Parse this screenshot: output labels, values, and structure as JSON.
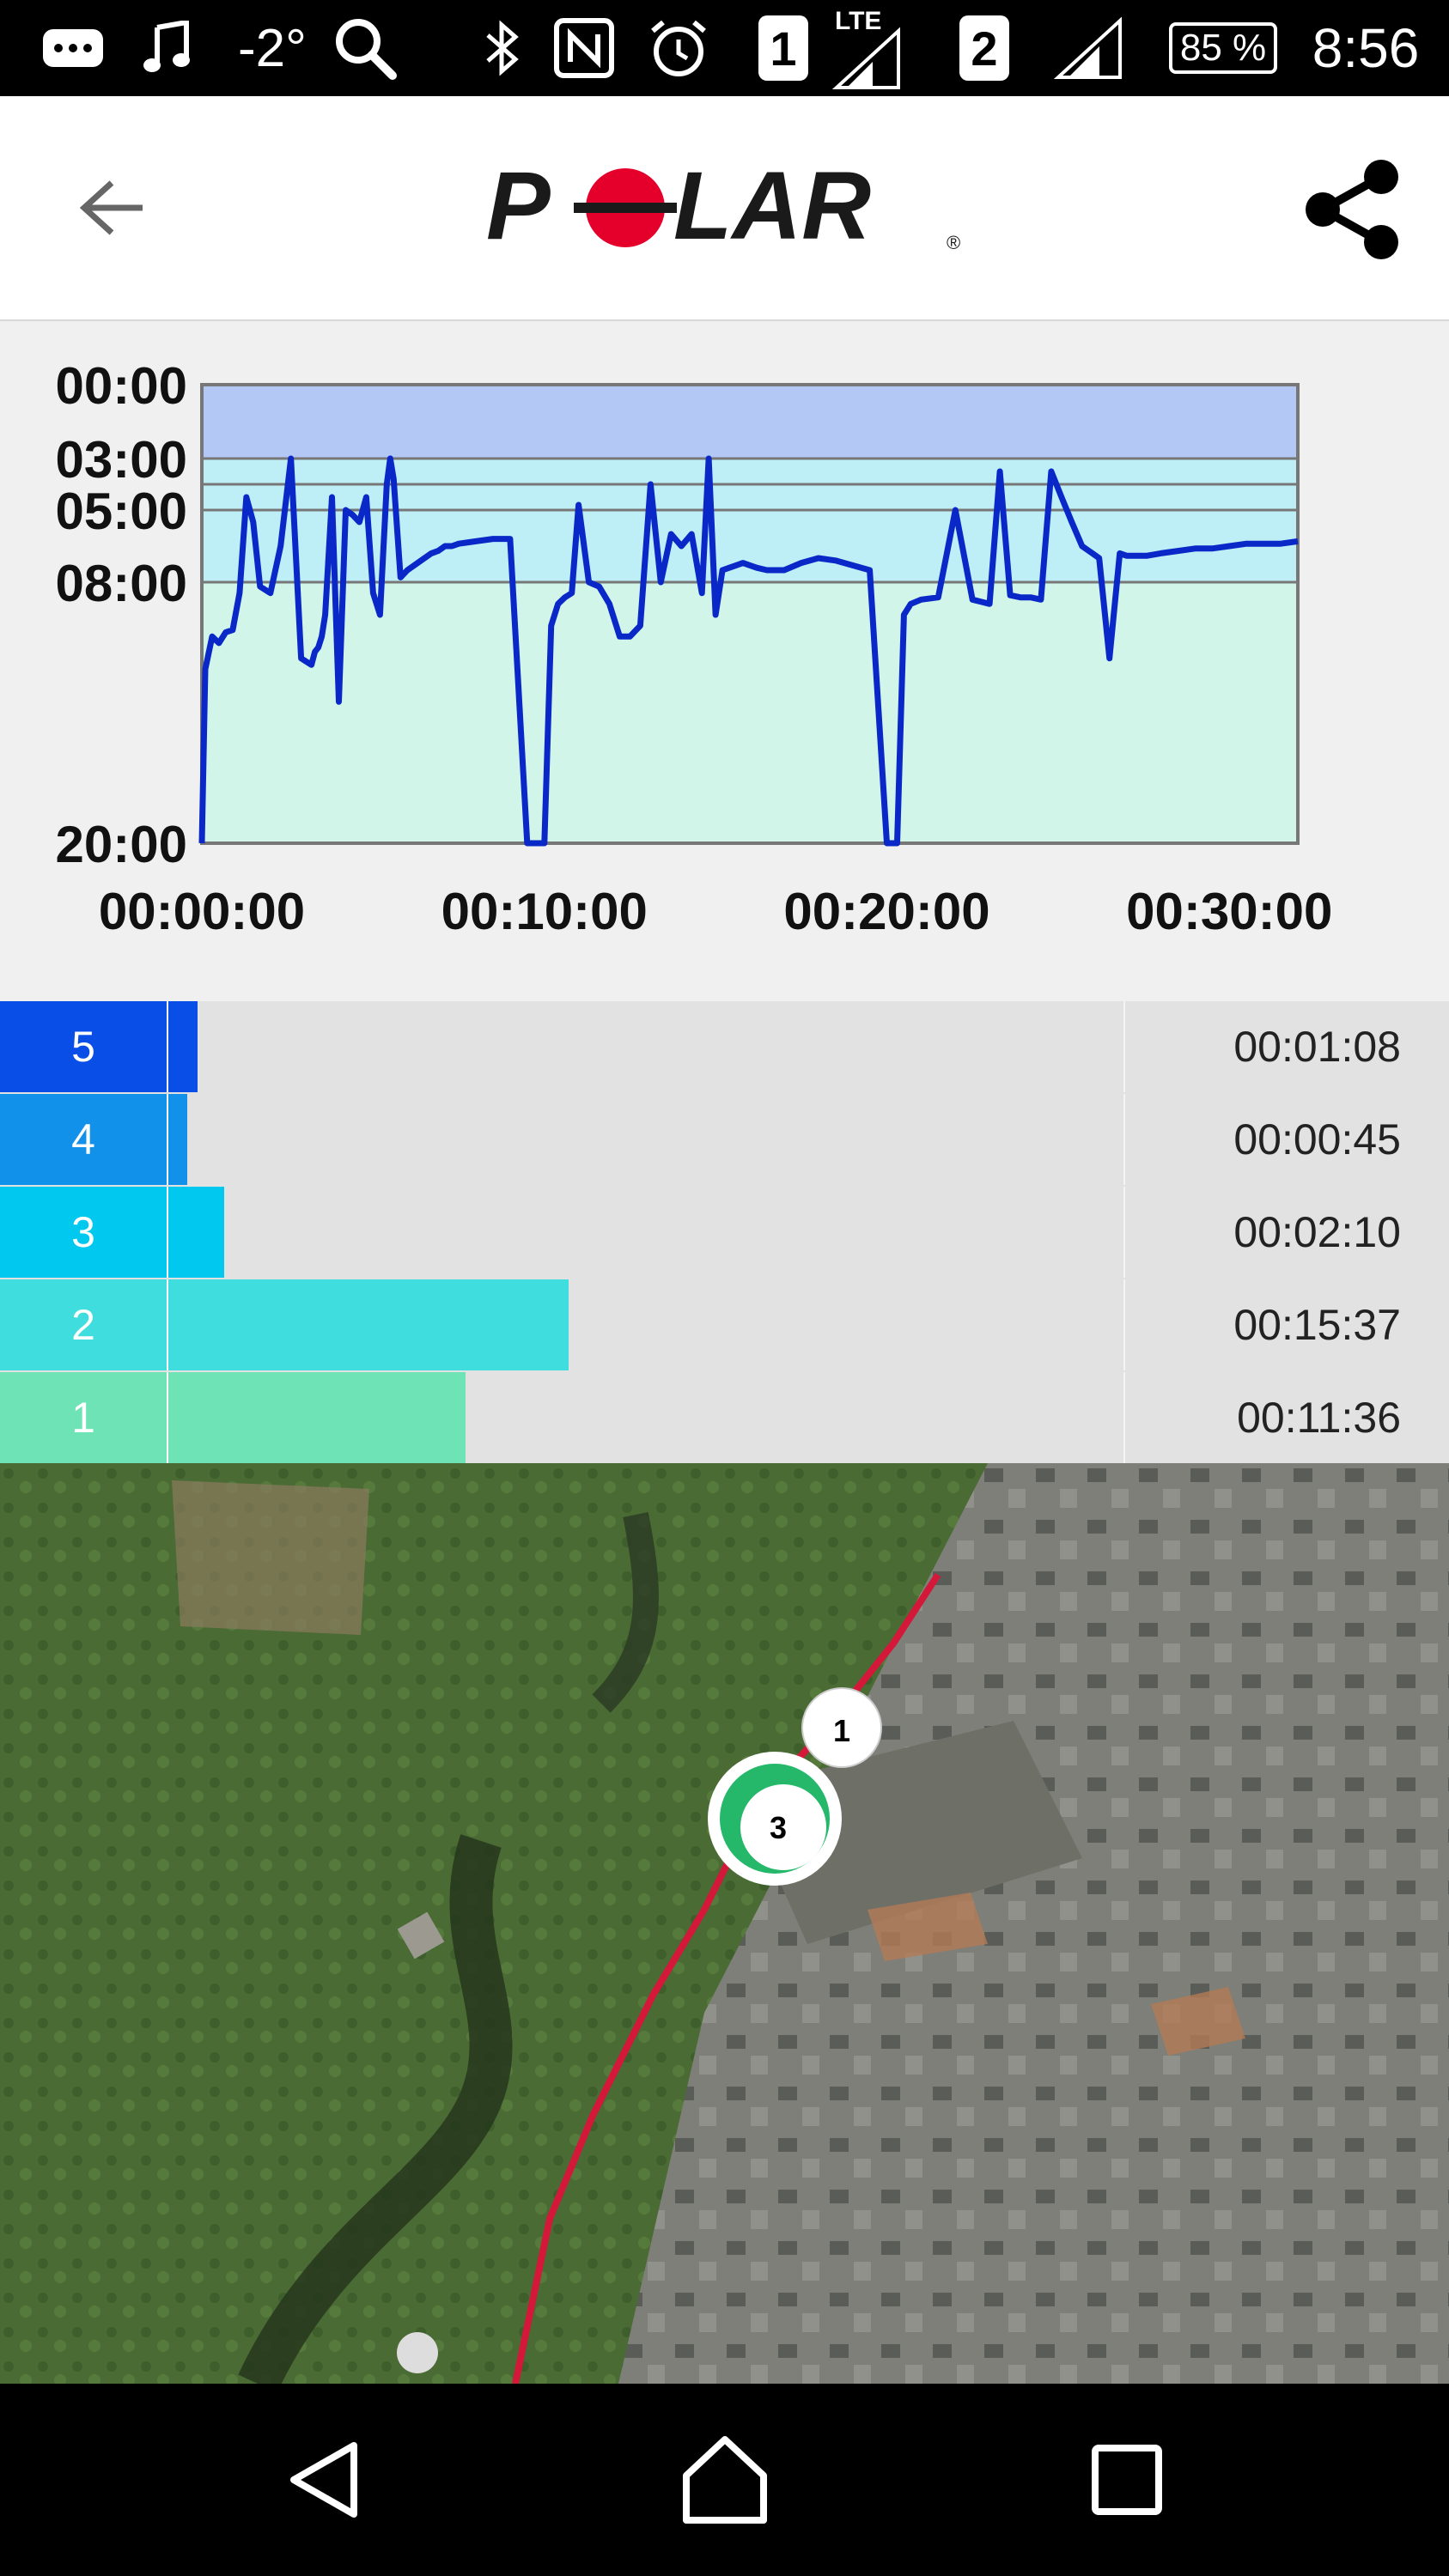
{
  "status_bar": {
    "music_icon": "music-note-icon",
    "temperature": "-2°",
    "sim1": "1",
    "network": "LTE",
    "sim2": "2",
    "battery": "85 %",
    "time": "8:56"
  },
  "app_bar": {
    "logo_text": "POLAR",
    "registered_mark": "®"
  },
  "chart_data": {
    "type": "line",
    "title": "",
    "xlabel": "",
    "ylabel": "",
    "x_ticks": [
      "00:00:00",
      "00:10:00",
      "00:20:00",
      "00:30:00"
    ],
    "y_ticks": [
      "00:00",
      "03:00",
      "05:00",
      "08:00",
      "20:00"
    ],
    "x_range_min": [
      0,
      32
    ],
    "y_range_pace_min_per_km": [
      0,
      20
    ],
    "y_scale": "reciprocal",
    "bands_colors": [
      "#b3c8f5",
      "#bfeff6",
      "#d2f5ea"
    ],
    "line_color": "#0a28c8",
    "series": [
      {
        "x_min": [
          0.0,
          0.1,
          0.3,
          0.5,
          0.7,
          0.9,
          1.1,
          1.3,
          1.5,
          1.7,
          2.0,
          2.3,
          2.6,
          2.9,
          3.2,
          3.3,
          3.4,
          3.5,
          3.6,
          3.8,
          4.0,
          4.2,
          4.4,
          4.6,
          4.8,
          5.0,
          5.2,
          5.4,
          5.5,
          5.6,
          5.8,
          6.0,
          6.3,
          6.5,
          6.7,
          6.9,
          7.1,
          7.3,
          7.5,
          8.0,
          8.5,
          9.0,
          9.5,
          10.0,
          10.2,
          10.4,
          10.6,
          10.8,
          11.0,
          11.3,
          11.6,
          11.9,
          12.2,
          12.5,
          12.8,
          13.1,
          13.4,
          13.7,
          14.0,
          14.3,
          14.6,
          14.8,
          15.0,
          15.2,
          15.4,
          15.6,
          15.8,
          16.0,
          16.2,
          16.5,
          17.0,
          17.5,
          18.0,
          18.5,
          19.0,
          19.5,
          20.0,
          20.3,
          20.5,
          20.7,
          21.0,
          21.5,
          22.0,
          22.5,
          23.0,
          23.3,
          23.6,
          23.9,
          24.2,
          24.5,
          24.8,
          25.1,
          25.4,
          25.7,
          26.0,
          26.2,
          26.5,
          26.8,
          27.0,
          27.3,
          27.6,
          28.0,
          28.5,
          29.0,
          29.5,
          30.0,
          30.5,
          31.0,
          31.5,
          32.0
        ],
        "pace_min_per_km": [
          20.0,
          12.0,
          10.5,
          10.8,
          10.3,
          10.2,
          8.5,
          4.5,
          5.5,
          8.2,
          8.5,
          6.5,
          3.0,
          11.5,
          11.8,
          11.2,
          11.0,
          10.5,
          9.5,
          4.5,
          13.5,
          5.0,
          5.2,
          5.5,
          4.5,
          8.5,
          9.5,
          4.0,
          3.0,
          3.8,
          7.8,
          7.5,
          7.2,
          7.0,
          6.8,
          6.7,
          6.5,
          6.5,
          6.4,
          6.3,
          6.2,
          6.2,
          20.0,
          20.0,
          10.0,
          9.0,
          8.7,
          8.5,
          4.8,
          8.0,
          8.2,
          9.0,
          10.5,
          10.5,
          10.0,
          4.0,
          8.0,
          6.0,
          6.5,
          6.0,
          8.5,
          3.0,
          9.5,
          7.5,
          7.4,
          7.3,
          7.2,
          7.3,
          7.4,
          7.5,
          7.5,
          7.2,
          7.0,
          7.1,
          7.3,
          7.5,
          20.0,
          20.0,
          9.5,
          9.0,
          8.8,
          8.7,
          5.0,
          8.8,
          9.0,
          3.5,
          8.6,
          8.7,
          8.7,
          8.8,
          3.5,
          4.5,
          5.5,
          6.5,
          6.8,
          7.0,
          11.5,
          6.8,
          6.9,
          6.9,
          6.9,
          6.8,
          6.7,
          6.6,
          6.6,
          6.5,
          6.4,
          6.4,
          6.4,
          6.3
        ]
      }
    ]
  },
  "zones": [
    {
      "label": "5",
      "time": "00:01:08",
      "fraction": 0.0225,
      "color_label": "#0a4ee8",
      "color_bar": "#0a4ee8"
    },
    {
      "label": "4",
      "time": "00:00:45",
      "fraction": 0.0149,
      "color_label": "#1191ea",
      "color_bar": "#1191ea"
    },
    {
      "label": "3",
      "time": "00:02:10",
      "fraction": 0.0434,
      "color_label": "#00c8ef",
      "color_bar": "#00c8ef"
    },
    {
      "label": "2",
      "time": "00:15:37",
      "fraction": 0.3128,
      "color_label": "#3fdddd",
      "color_bar": "#3fdddd"
    },
    {
      "label": "1",
      "time": "00:11:36",
      "fraction": 0.2323,
      "color_label": "#6de3b6",
      "color_bar": "#6de3b6"
    }
  ],
  "map": {
    "route_color": "#d4183a",
    "marker_1": "1",
    "marker_3": "3"
  },
  "nav": {
    "back_icon": "nav-back-icon",
    "home_icon": "nav-home-icon",
    "recents_icon": "nav-recents-icon"
  }
}
